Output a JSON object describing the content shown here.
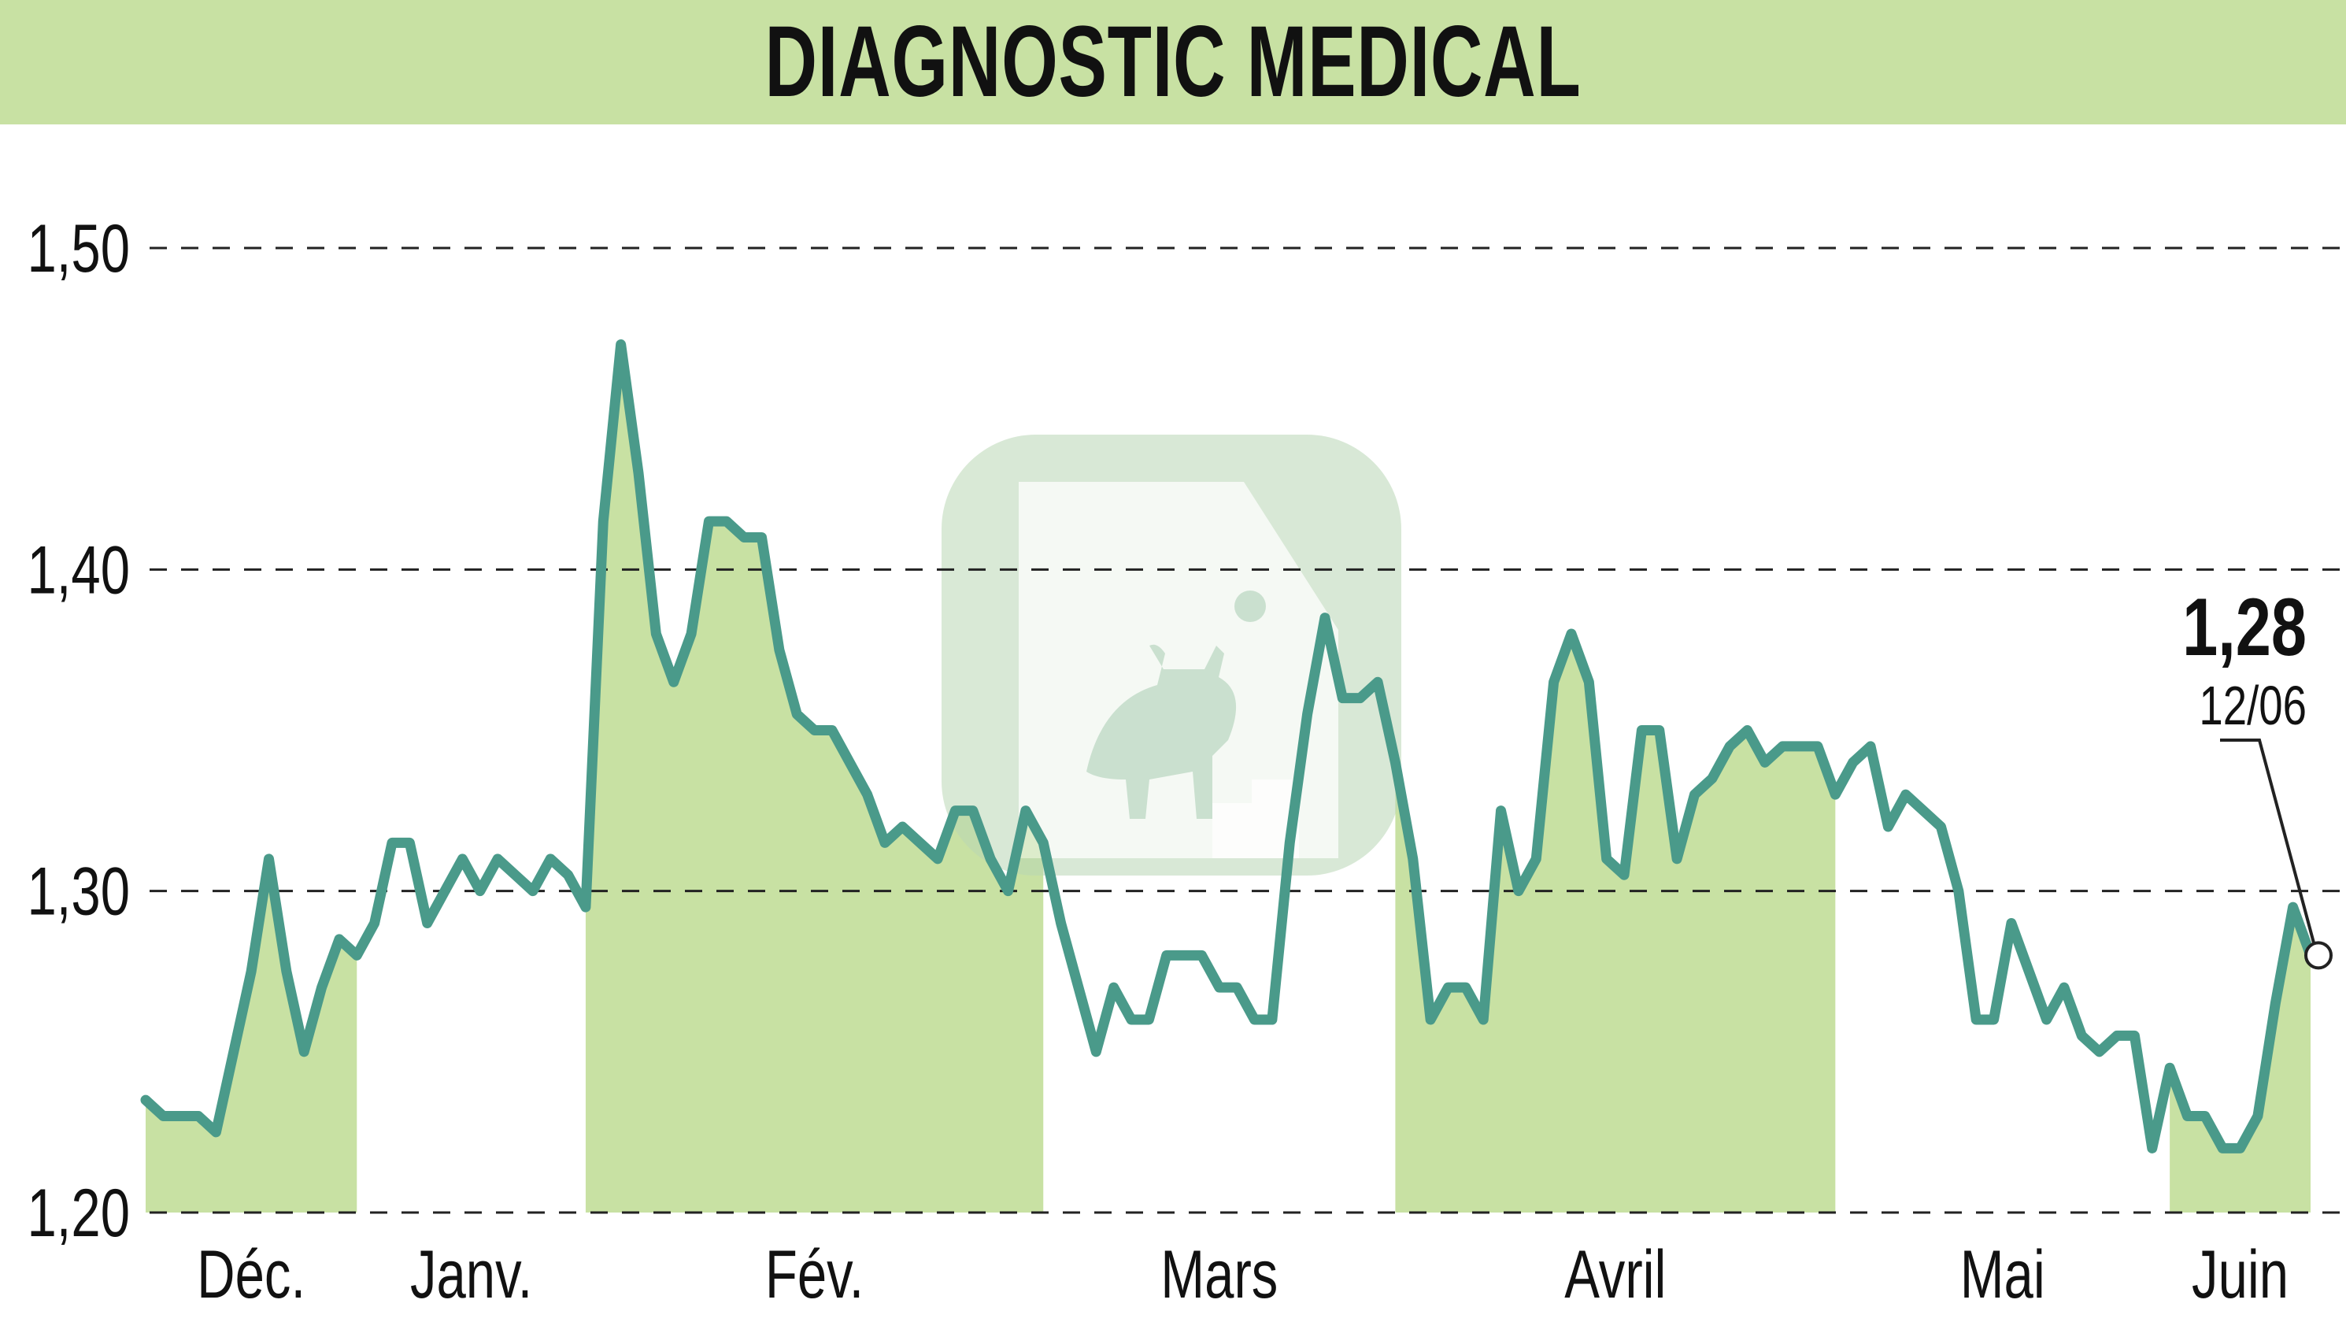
{
  "title": "DIAGNOSTIC MEDICAL",
  "colors": {
    "band": "#c8e1a3",
    "line": "#4a9a8a",
    "grid": "#222222",
    "text": "#111111"
  },
  "chart_data": {
    "type": "line",
    "title": "DIAGNOSTIC MEDICAL",
    "xlabel": "",
    "ylabel": "",
    "ylim": [
      1.2,
      1.5
    ],
    "y_ticks": [
      1.2,
      1.3,
      1.4,
      1.5
    ],
    "y_tick_labels": [
      "1,20",
      "1,30",
      "1,40",
      "1,50"
    ],
    "grid": "horizontal dashed",
    "month_labels": [
      "Déc.",
      "Janv.",
      "Fév.",
      "Mars",
      "Avril",
      "Mai",
      "Juin"
    ],
    "last_value_label": "1,28",
    "last_date_label": "12/06",
    "shaded_months": [
      "Déc.",
      "Fév.",
      "Avril",
      "Juin"
    ],
    "values": [
      1.235,
      1.23,
      1.23,
      1.23,
      1.225,
      1.25,
      1.275,
      1.31,
      1.275,
      1.25,
      1.27,
      1.285,
      1.28,
      1.29,
      1.315,
      1.315,
      1.29,
      1.3,
      1.31,
      1.3,
      1.31,
      1.305,
      1.3,
      1.31,
      1.305,
      1.295,
      1.415,
      1.47,
      1.43,
      1.38,
      1.365,
      1.38,
      1.415,
      1.415,
      1.41,
      1.41,
      1.375,
      1.355,
      1.35,
      1.35,
      1.34,
      1.33,
      1.315,
      1.32,
      1.315,
      1.31,
      1.325,
      1.325,
      1.31,
      1.3,
      1.325,
      1.315,
      1.29,
      1.27,
      1.25,
      1.27,
      1.26,
      1.26,
      1.28,
      1.28,
      1.28,
      1.27,
      1.27,
      1.26,
      1.26,
      1.315,
      1.355,
      1.385,
      1.36,
      1.36,
      1.365,
      1.34,
      1.31,
      1.26,
      1.27,
      1.27,
      1.26,
      1.325,
      1.3,
      1.31,
      1.365,
      1.38,
      1.365,
      1.31,
      1.305,
      1.35,
      1.35,
      1.31,
      1.33,
      1.335,
      1.345,
      1.35,
      1.34,
      1.345,
      1.345,
      1.345,
      1.33,
      1.34,
      1.345,
      1.32,
      1.33,
      1.325,
      1.32,
      1.3,
      1.26,
      1.26,
      1.29,
      1.275,
      1.26,
      1.27,
      1.255,
      1.25,
      1.255,
      1.255,
      1.22,
      1.245,
      1.23,
      1.23,
      1.22,
      1.22,
      1.23,
      1.265,
      1.295,
      1.28
    ]
  }
}
